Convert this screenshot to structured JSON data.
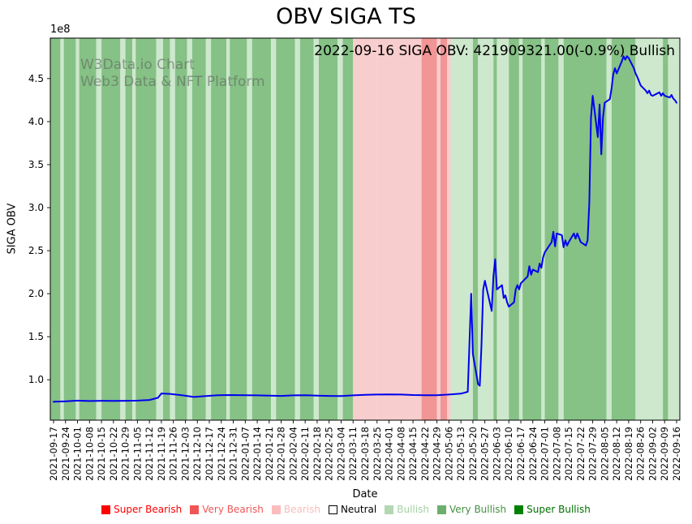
{
  "title": "OBV SIGA TS",
  "annotation": "2022-09-16 SIGA OBV: 421909321.00(-0.9%) Bullish",
  "watermark": {
    "line1": "W3Data.io Chart",
    "line2": "Web3 Data & NFT Platform"
  },
  "axes": {
    "ylabel": "SIGA OBV",
    "xlabel": "Date",
    "offset_label": "1e8"
  },
  "legend": {
    "items": [
      {
        "key": "super-bearish",
        "label": "Super Bearish",
        "color": "#fe0000",
        "text_color": "#fe0000",
        "border": false
      },
      {
        "key": "very-bearish",
        "label": "Very Bearish",
        "color": "#f05555",
        "text_color": "#f05555",
        "border": false
      },
      {
        "key": "bearish",
        "label": "Bearish",
        "color": "#fbbcbc",
        "text_color": "#fbbcbc",
        "border": false
      },
      {
        "key": "neutral",
        "label": "Neutral",
        "color": "#ffffff",
        "text_color": "#000000",
        "border": true
      },
      {
        "key": "bullish",
        "label": "Bullish",
        "color": "#b2d8b2",
        "text_color": "#a5d0a5",
        "border": false
      },
      {
        "key": "very-bullish",
        "label": "Very Bullish",
        "color": "#6caf6c",
        "text_color": "#459045",
        "border": false
      },
      {
        "key": "super-bullish",
        "label": "Super Bullish",
        "color": "#008000",
        "text_color": "#007000",
        "border": false
      }
    ]
  },
  "chart_data": {
    "type": "line",
    "title": "OBV SIGA TS",
    "xlabel": "Date",
    "ylabel": "SIGA OBV",
    "values_unit": "1e8",
    "latest_value": 421909321.0,
    "latest_change_pct": -0.9,
    "latest_sentiment": "Bullish",
    "ylim": [
      0.53,
      4.97
    ],
    "x_range": [
      "2021-09-17",
      "2022-09-16"
    ],
    "yticks": [
      1.0,
      1.5,
      2.0,
      2.5,
      3.0,
      3.5,
      4.0,
      4.5
    ],
    "xticks": [
      "2021-09-17",
      "2021-09-24",
      "2021-10-01",
      "2021-10-08",
      "2021-10-15",
      "2021-10-22",
      "2021-10-29",
      "2021-11-05",
      "2021-11-12",
      "2021-11-19",
      "2021-11-26",
      "2021-12-03",
      "2021-12-10",
      "2021-12-17",
      "2021-12-24",
      "2021-12-31",
      "2022-01-07",
      "2022-01-14",
      "2022-01-21",
      "2022-01-28",
      "2022-02-04",
      "2022-02-11",
      "2022-02-18",
      "2022-02-25",
      "2022-03-04",
      "2022-03-11",
      "2022-03-18",
      "2022-03-25",
      "2022-04-01",
      "2022-04-08",
      "2022-04-15",
      "2022-04-22",
      "2022-04-29",
      "2022-05-06",
      "2022-05-13",
      "2022-05-20",
      "2022-05-27",
      "2022-06-03",
      "2022-06-10",
      "2022-06-17",
      "2022-06-24",
      "2022-07-01",
      "2022-07-08",
      "2022-07-15",
      "2022-07-22",
      "2022-07-29",
      "2022-08-05",
      "2022-08-12",
      "2022-08-19",
      "2022-08-26",
      "2022-09-02",
      "2022-09-09",
      "2022-09-16"
    ],
    "line_color": "#0000ee",
    "series": [
      {
        "name": "SIGA OBV",
        "points": [
          [
            "2021-09-17",
            0.745
          ],
          [
            "2021-09-24",
            0.75
          ],
          [
            "2021-10-01",
            0.757
          ],
          [
            "2021-10-08",
            0.752
          ],
          [
            "2021-10-15",
            0.755
          ],
          [
            "2021-10-22",
            0.753
          ],
          [
            "2021-10-29",
            0.755
          ],
          [
            "2021-11-05",
            0.757
          ],
          [
            "2021-11-12",
            0.765
          ],
          [
            "2021-11-17",
            0.79
          ],
          [
            "2021-11-19",
            0.84
          ],
          [
            "2021-11-24",
            0.835
          ],
          [
            "2021-12-01",
            0.82
          ],
          [
            "2021-12-08",
            0.8
          ],
          [
            "2021-12-15",
            0.81
          ],
          [
            "2021-12-22",
            0.82
          ],
          [
            "2021-12-29",
            0.822
          ],
          [
            "2022-01-07",
            0.82
          ],
          [
            "2022-01-14",
            0.818
          ],
          [
            "2022-01-21",
            0.815
          ],
          [
            "2022-01-28",
            0.812
          ],
          [
            "2022-02-04",
            0.818
          ],
          [
            "2022-02-11",
            0.82
          ],
          [
            "2022-02-18",
            0.815
          ],
          [
            "2022-02-25",
            0.812
          ],
          [
            "2022-03-04",
            0.81
          ],
          [
            "2022-03-11",
            0.818
          ],
          [
            "2022-03-18",
            0.825
          ],
          [
            "2022-03-25",
            0.828
          ],
          [
            "2022-04-01",
            0.83
          ],
          [
            "2022-04-08",
            0.828
          ],
          [
            "2022-04-15",
            0.822
          ],
          [
            "2022-04-22",
            0.82
          ],
          [
            "2022-04-29",
            0.82
          ],
          [
            "2022-05-06",
            0.828
          ],
          [
            "2022-05-13",
            0.838
          ],
          [
            "2022-05-17",
            0.86
          ],
          [
            "2022-05-19",
            2.0
          ],
          [
            "2022-05-20",
            1.3
          ],
          [
            "2022-05-23",
            0.95
          ],
          [
            "2022-05-24",
            0.93
          ],
          [
            "2022-05-25",
            1.4
          ],
          [
            "2022-05-26",
            2.05
          ],
          [
            "2022-05-27",
            2.15
          ],
          [
            "2022-05-31",
            1.8
          ],
          [
            "2022-06-01",
            2.2
          ],
          [
            "2022-06-02",
            2.4
          ],
          [
            "2022-06-03",
            2.05
          ],
          [
            "2022-06-06",
            2.1
          ],
          [
            "2022-06-07",
            1.95
          ],
          [
            "2022-06-08",
            1.98
          ],
          [
            "2022-06-09",
            1.9
          ],
          [
            "2022-06-10",
            1.85
          ],
          [
            "2022-06-13",
            1.9
          ],
          [
            "2022-06-14",
            2.05
          ],
          [
            "2022-06-15",
            2.1
          ],
          [
            "2022-06-16",
            2.05
          ],
          [
            "2022-06-17",
            2.12
          ],
          [
            "2022-06-21",
            2.2
          ],
          [
            "2022-06-22",
            2.32
          ],
          [
            "2022-06-23",
            2.22
          ],
          [
            "2022-06-24",
            2.28
          ],
          [
            "2022-06-27",
            2.25
          ],
          [
            "2022-06-28",
            2.35
          ],
          [
            "2022-06-29",
            2.3
          ],
          [
            "2022-06-30",
            2.42
          ],
          [
            "2022-07-01",
            2.48
          ],
          [
            "2022-07-05",
            2.6
          ],
          [
            "2022-07-06",
            2.72
          ],
          [
            "2022-07-07",
            2.55
          ],
          [
            "2022-07-08",
            2.7
          ],
          [
            "2022-07-11",
            2.68
          ],
          [
            "2022-07-12",
            2.54
          ],
          [
            "2022-07-13",
            2.62
          ],
          [
            "2022-07-14",
            2.56
          ],
          [
            "2022-07-15",
            2.6
          ],
          [
            "2022-07-18",
            2.7
          ],
          [
            "2022-07-19",
            2.64
          ],
          [
            "2022-07-20",
            2.7
          ],
          [
            "2022-07-21",
            2.65
          ],
          [
            "2022-07-22",
            2.6
          ],
          [
            "2022-07-25",
            2.56
          ],
          [
            "2022-07-26",
            2.62
          ],
          [
            "2022-07-27",
            3.05
          ],
          [
            "2022-07-28",
            4.05
          ],
          [
            "2022-07-29",
            4.3
          ],
          [
            "2022-08-01",
            3.82
          ],
          [
            "2022-08-02",
            4.2
          ],
          [
            "2022-08-03",
            3.62
          ],
          [
            "2022-08-04",
            4.05
          ],
          [
            "2022-08-05",
            4.22
          ],
          [
            "2022-08-08",
            4.26
          ],
          [
            "2022-08-09",
            4.38
          ],
          [
            "2022-08-10",
            4.55
          ],
          [
            "2022-08-11",
            4.62
          ],
          [
            "2022-08-12",
            4.56
          ],
          [
            "2022-08-15",
            4.7
          ],
          [
            "2022-08-16",
            4.76
          ],
          [
            "2022-08-17",
            4.72
          ],
          [
            "2022-08-18",
            4.76
          ],
          [
            "2022-08-19",
            4.74
          ],
          [
            "2022-08-22",
            4.62
          ],
          [
            "2022-08-23",
            4.56
          ],
          [
            "2022-08-24",
            4.52
          ],
          [
            "2022-08-25",
            4.47
          ],
          [
            "2022-08-26",
            4.42
          ],
          [
            "2022-08-29",
            4.36
          ],
          [
            "2022-08-30",
            4.33
          ],
          [
            "2022-08-31",
            4.36
          ],
          [
            "2022-09-01",
            4.31
          ],
          [
            "2022-09-02",
            4.3
          ],
          [
            "2022-09-06",
            4.34
          ],
          [
            "2022-09-07",
            4.3
          ],
          [
            "2022-09-08",
            4.33
          ],
          [
            "2022-09-09",
            4.3
          ],
          [
            "2022-09-12",
            4.28
          ],
          [
            "2022-09-13",
            4.31
          ],
          [
            "2022-09-14",
            4.27
          ],
          [
            "2022-09-15",
            4.25
          ],
          [
            "2022-09-16",
            4.219
          ]
        ]
      }
    ],
    "band_colors": {
      "super_bearish": "#ff6666",
      "very_bearish": "#f19595",
      "bearish": "#f8cdcd",
      "neutral": "#ffffff",
      "bullish": "#cde8cd",
      "very_bullish": "#86c186",
      "super_bullish": "#5ca85c"
    },
    "bands": [
      [
        "2021-09-13",
        "2021-09-21",
        "very_bullish"
      ],
      [
        "2021-09-21",
        "2021-09-23",
        "bullish"
      ],
      [
        "2021-09-23",
        "2021-09-30",
        "very_bullish"
      ],
      [
        "2021-09-30",
        "2021-10-02",
        "bullish"
      ],
      [
        "2021-10-02",
        "2021-10-12",
        "very_bullish"
      ],
      [
        "2021-10-12",
        "2021-10-15",
        "bullish"
      ],
      [
        "2021-10-15",
        "2021-10-26",
        "very_bullish"
      ],
      [
        "2021-10-26",
        "2021-10-29",
        "bullish"
      ],
      [
        "2021-10-29",
        "2021-11-02",
        "very_bullish"
      ],
      [
        "2021-11-02",
        "2021-11-04",
        "bullish"
      ],
      [
        "2021-11-04",
        "2021-11-16",
        "very_bullish"
      ],
      [
        "2021-11-16",
        "2021-11-20",
        "bullish"
      ],
      [
        "2021-11-20",
        "2021-11-24",
        "very_bullish"
      ],
      [
        "2021-11-24",
        "2021-11-27",
        "bullish"
      ],
      [
        "2021-11-27",
        "2021-12-04",
        "very_bullish"
      ],
      [
        "2021-12-04",
        "2021-12-07",
        "bullish"
      ],
      [
        "2021-12-07",
        "2021-12-15",
        "very_bullish"
      ],
      [
        "2021-12-15",
        "2021-12-18",
        "bullish"
      ],
      [
        "2021-12-18",
        "2021-12-27",
        "very_bullish"
      ],
      [
        "2021-12-27",
        "2021-12-29",
        "bullish"
      ],
      [
        "2021-12-29",
        "2022-01-08",
        "very_bullish"
      ],
      [
        "2022-01-08",
        "2022-01-11",
        "bullish"
      ],
      [
        "2022-01-11",
        "2022-01-22",
        "very_bullish"
      ],
      [
        "2022-01-22",
        "2022-01-25",
        "bullish"
      ],
      [
        "2022-01-25",
        "2022-02-05",
        "very_bullish"
      ],
      [
        "2022-02-05",
        "2022-02-08",
        "bullish"
      ],
      [
        "2022-02-08",
        "2022-02-16",
        "very_bullish"
      ],
      [
        "2022-02-16",
        "2022-02-19",
        "bullish"
      ],
      [
        "2022-02-19",
        "2022-03-02",
        "very_bullish"
      ],
      [
        "2022-03-02",
        "2022-03-05",
        "bullish"
      ],
      [
        "2022-03-05",
        "2022-03-11",
        "very_bullish"
      ],
      [
        "2022-03-11",
        "2022-03-25",
        "bearish"
      ],
      [
        "2022-03-25",
        "2022-04-20",
        "bearish"
      ],
      [
        "2022-04-20",
        "2022-04-29",
        "very_bearish"
      ],
      [
        "2022-04-29",
        "2022-05-01",
        "bearish"
      ],
      [
        "2022-05-01",
        "2022-05-05",
        "very_bearish"
      ],
      [
        "2022-05-05",
        "2022-05-07",
        "bearish"
      ],
      [
        "2022-05-07",
        "2022-05-20",
        "bullish"
      ],
      [
        "2022-05-20",
        "2022-05-23",
        "very_bullish"
      ],
      [
        "2022-05-23",
        "2022-06-01",
        "bullish"
      ],
      [
        "2022-06-01",
        "2022-06-03",
        "very_bullish"
      ],
      [
        "2022-06-03",
        "2022-06-10",
        "bullish"
      ],
      [
        "2022-06-10",
        "2022-06-16",
        "very_bullish"
      ],
      [
        "2022-06-16",
        "2022-06-18",
        "bullish"
      ],
      [
        "2022-06-18",
        "2022-06-29",
        "very_bullish"
      ],
      [
        "2022-06-29",
        "2022-07-01",
        "bullish"
      ],
      [
        "2022-07-01",
        "2022-07-09",
        "very_bullish"
      ],
      [
        "2022-07-09",
        "2022-07-12",
        "bullish"
      ],
      [
        "2022-07-12",
        "2022-08-06",
        "very_bullish"
      ],
      [
        "2022-08-06",
        "2022-08-09",
        "bullish"
      ],
      [
        "2022-08-09",
        "2022-08-23",
        "very_bullish"
      ],
      [
        "2022-08-23",
        "2022-09-08",
        "bullish"
      ],
      [
        "2022-09-08",
        "2022-09-11",
        "very_bullish"
      ],
      [
        "2022-09-11",
        "2022-09-19",
        "bullish"
      ]
    ]
  }
}
